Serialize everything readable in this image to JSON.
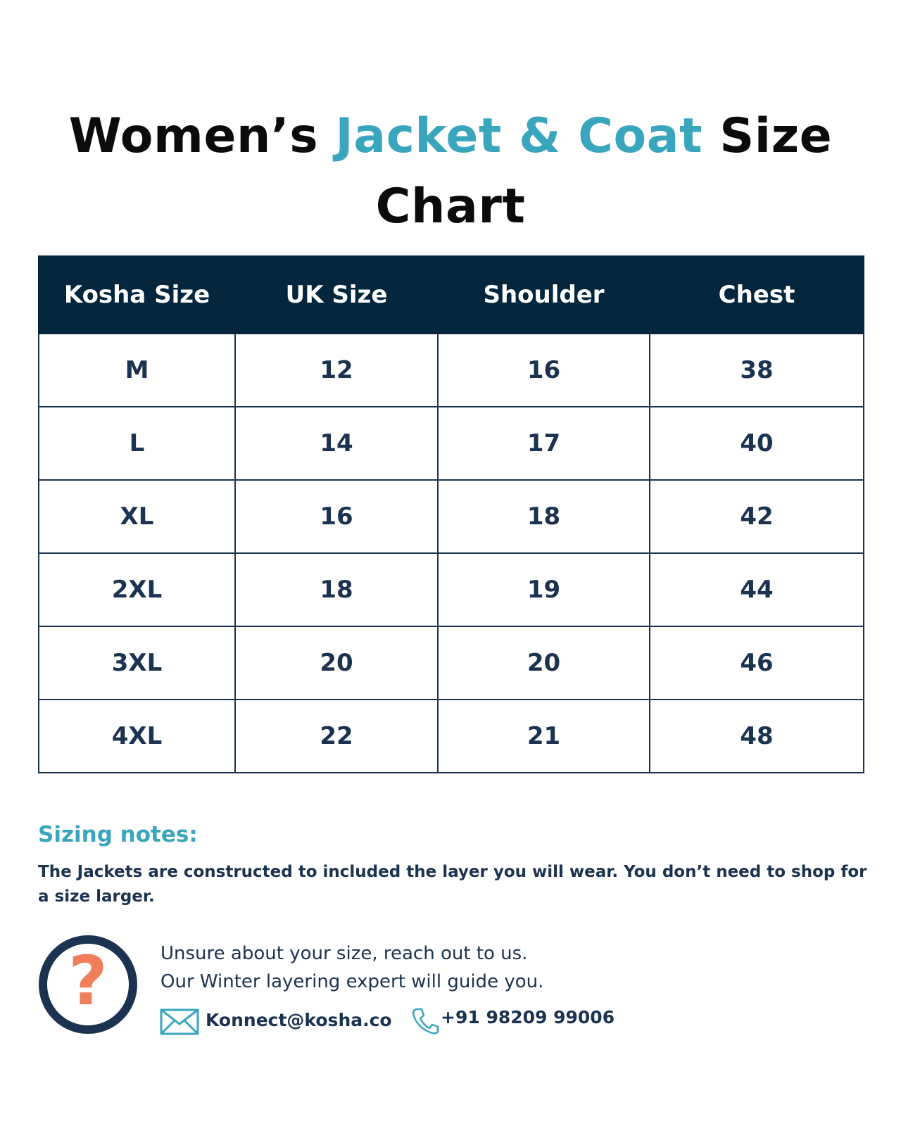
{
  "title": {
    "lead": "Women’s",
    "highlight": "Jacket & Coat",
    "tail": "Size",
    "line2": "Chart"
  },
  "table": {
    "header": [
      "Kosha Size",
      "UK Size",
      "Shoulder",
      "Chest"
    ],
    "rows": [
      [
        "M",
        12,
        16,
        38
      ],
      [
        "L",
        14,
        17,
        40
      ],
      [
        "XL",
        16,
        18,
        42
      ],
      [
        "2XL",
        18,
        19,
        44
      ],
      [
        "3XL",
        20,
        20,
        46
      ],
      [
        "4XL",
        22,
        21,
        48
      ]
    ]
  },
  "notes": {
    "title": "Sizing notes:",
    "text": "The Jackets are constructed to included the layer you will wear. You don’t need to shop for a size larger."
  },
  "contact": {
    "line1": "Unsure about your size, reach out to us.",
    "line2": "Our Winter layering expert will guide you.",
    "email": "Konnect@kosha.co",
    "phone": "+91 98209 99006"
  }
}
